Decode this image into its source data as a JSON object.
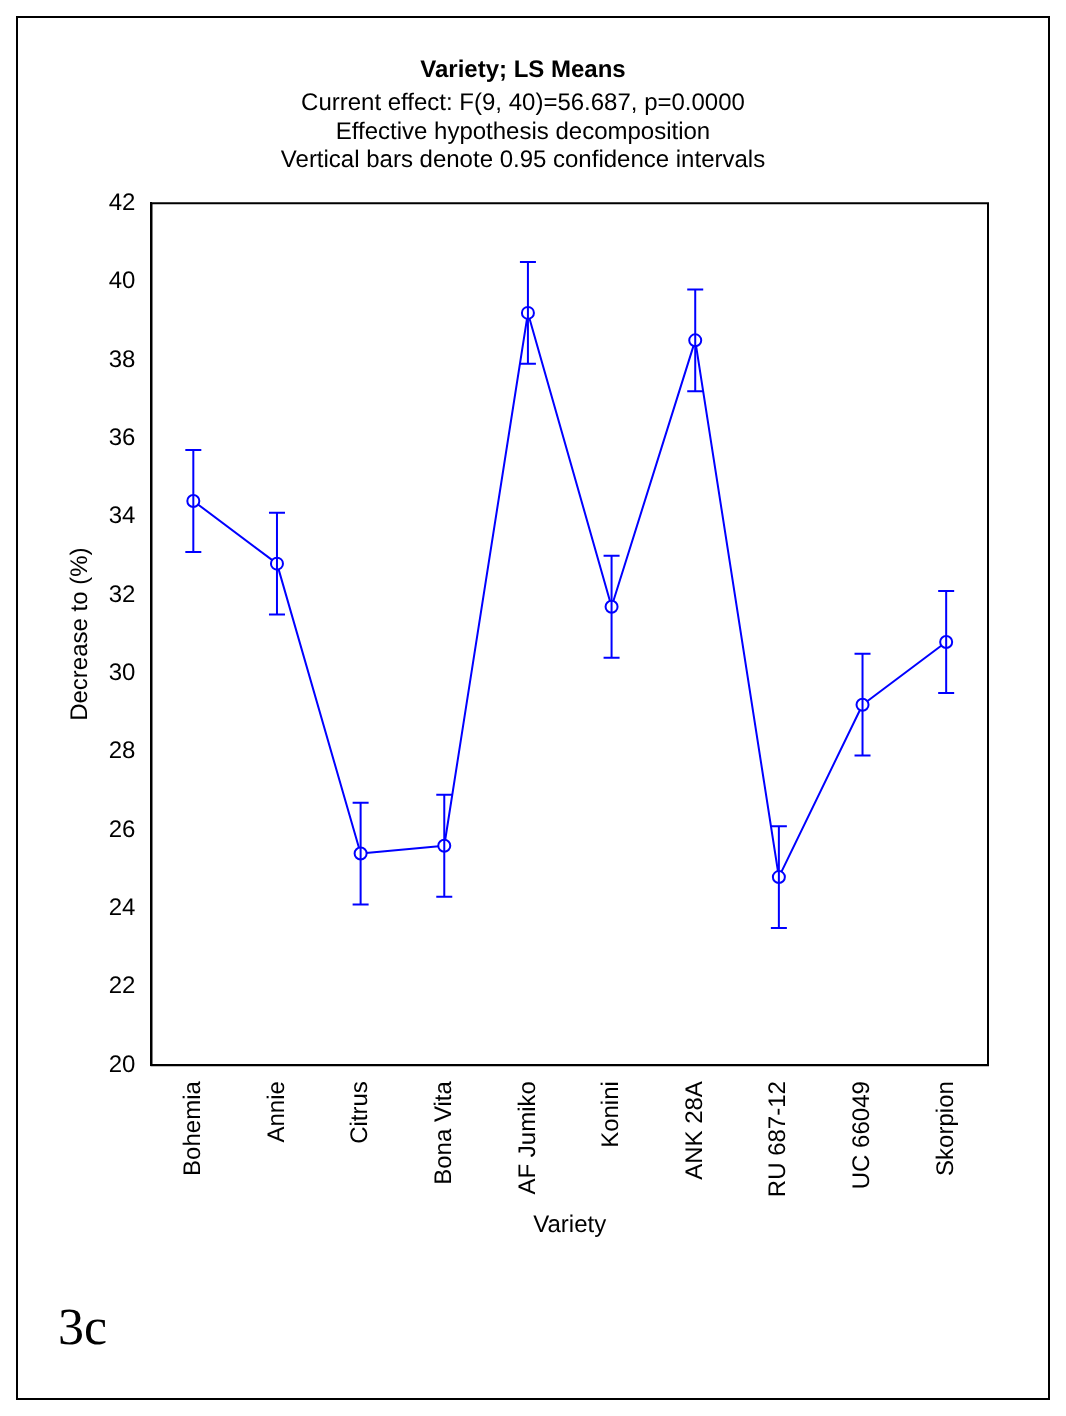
{
  "chart_data": {
    "type": "line",
    "title": "Variety; LS Means",
    "subtitle": "Current effect: F(9, 40)=56.687, p=0.0000",
    "annotations": [
      "Effective hypothesis decomposition",
      "Vertical bars denote 0.95 confidence intervals",
      "3c"
    ],
    "xlabel": "Variety",
    "ylabel": "Decrease to (%)",
    "categories": [
      "Bohemia",
      "Annie",
      "Citrus",
      "Bona Vita",
      "AF Jumiko",
      "Konini",
      "ANK 28A",
      "RU 687-12",
      "UC 66049",
      "Skorpion"
    ],
    "series": [
      {
        "color": "#0000ff",
        "values": [
          34.4,
          32.8,
          25.4,
          25.6,
          39.2,
          31.7,
          38.5,
          24.8,
          29.2,
          30.8
        ],
        "errors": [
          1.3,
          1.3,
          1.3,
          1.3,
          1.3,
          1.3,
          1.3,
          1.3,
          1.3,
          1.3
        ]
      }
    ],
    "ylim": [
      20,
      42
    ],
    "yticks": [
      20,
      22,
      24,
      26,
      28,
      30,
      32,
      34,
      36,
      38,
      40,
      42
    ],
    "grid": false,
    "legend": false,
    "marker": "circle",
    "line_style": "solid"
  }
}
